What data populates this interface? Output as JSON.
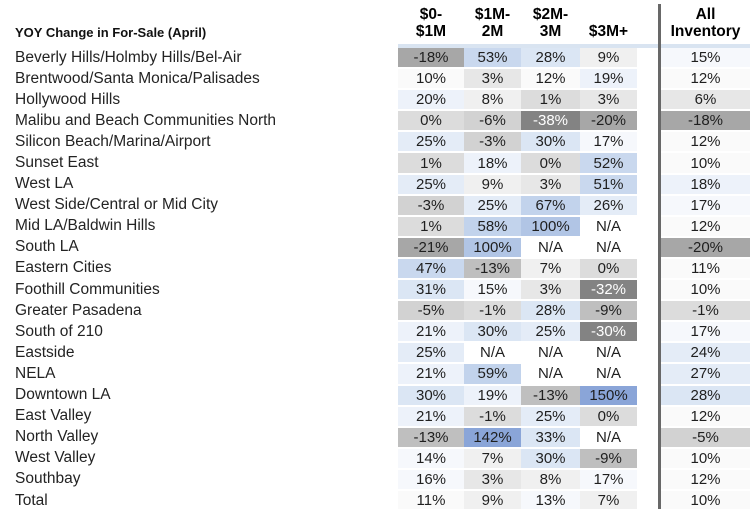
{
  "header": {
    "title": "YOY Change in For-Sale (April)",
    "columns": [
      [
        "$0-",
        "$1M"
      ],
      [
        "$1M-",
        "2M"
      ],
      [
        "$2M-",
        "3M"
      ],
      [
        "",
        "$3M+"
      ],
      [
        "All",
        "Inventory"
      ]
    ]
  },
  "na_label": "N/A",
  "heatmap": {
    "na_bg": "#ffffff",
    "default_text": "#1f1f1f",
    "divider": "#686868",
    "header_underline": "#d9e4f1"
  },
  "color_scale": [
    {
      "max": -25,
      "bg": "#838383",
      "fg": "#ffffff"
    },
    {
      "max": -15,
      "bg": "#a7a7a7"
    },
    {
      "max": -8,
      "bg": "#bfbfbf"
    },
    {
      "max": -2,
      "bg": "#d2d2d2"
    },
    {
      "max": 1,
      "bg": "#dcdcdc"
    },
    {
      "max": 6,
      "bg": "#e7e7e7"
    },
    {
      "max": 9,
      "bg": "#f0f0f0"
    },
    {
      "max": 12,
      "bg": "#fafafa"
    },
    {
      "max": 17,
      "bg": "#f6f8fc"
    },
    {
      "max": 22,
      "bg": "#edf2fa"
    },
    {
      "max": 27,
      "bg": "#e4ecf7"
    },
    {
      "max": 35,
      "bg": "#dbe6f4"
    },
    {
      "max": 55,
      "bg": "#c9d8ee"
    },
    {
      "max": 70,
      "bg": "#c2d3ec"
    },
    {
      "max": 120,
      "bg": "#b1c5e5"
    },
    {
      "max": 10000,
      "bg": "#8aa5d8"
    }
  ],
  "chart_data": {
    "type": "heatmap",
    "title": "YOY Change in For-Sale (April)",
    "columns": [
      "$0-$1M",
      "$1M-2M",
      "$2M-3M",
      "$3M+",
      "All Inventory"
    ],
    "unit": "percent",
    "color_encoding": "3-color scale: dark gray = most negative (white text below -25%), white near ~10%, blue = most positive; N/A = no data",
    "rows": [
      {
        "label": "Beverly Hills/Holmby Hills/Bel-Air",
        "values": [
          -18,
          53,
          28,
          9,
          15
        ]
      },
      {
        "label": "Brentwood/Santa Monica/Palisades",
        "values": [
          10,
          3,
          12,
          19,
          12
        ]
      },
      {
        "label": "Hollywood Hills",
        "values": [
          20,
          8,
          1,
          3,
          6
        ]
      },
      {
        "label": "Malibu and Beach Communities North",
        "values": [
          0,
          -6,
          -38,
          -20,
          -18
        ]
      },
      {
        "label": "Silicon Beach/Marina/Airport",
        "values": [
          25,
          -3,
          30,
          17,
          12
        ]
      },
      {
        "label": "Sunset East",
        "values": [
          1,
          18,
          0,
          52,
          10
        ]
      },
      {
        "label": "West LA",
        "values": [
          25,
          9,
          3,
          51,
          18
        ]
      },
      {
        "label": "West Side/Central or Mid City",
        "values": [
          -3,
          25,
          67,
          26,
          17
        ]
      },
      {
        "label": "Mid LA/Baldwin Hills",
        "values": [
          1,
          58,
          100,
          null,
          12
        ]
      },
      {
        "label": "South LA",
        "values": [
          -21,
          100,
          null,
          null,
          -20
        ]
      },
      {
        "label": "Eastern Cities",
        "values": [
          47,
          -13,
          7,
          0,
          11
        ]
      },
      {
        "label": "Foothill Communities",
        "values": [
          31,
          15,
          3,
          -32,
          10
        ]
      },
      {
        "label": "Greater Pasadena",
        "values": [
          -5,
          -1,
          28,
          -9,
          -1
        ]
      },
      {
        "label": "South of 210",
        "values": [
          21,
          30,
          25,
          -30,
          17
        ]
      },
      {
        "label": "Eastside",
        "values": [
          25,
          null,
          null,
          null,
          24
        ]
      },
      {
        "label": "NELA",
        "values": [
          21,
          59,
          null,
          null,
          27
        ]
      },
      {
        "label": "Downtown LA",
        "values": [
          30,
          19,
          -13,
          150,
          28
        ]
      },
      {
        "label": "East Valley",
        "values": [
          21,
          -1,
          25,
          0,
          12
        ]
      },
      {
        "label": "North Valley",
        "values": [
          -13,
          142,
          33,
          null,
          -5
        ]
      },
      {
        "label": "West Valley",
        "values": [
          14,
          7,
          30,
          -9,
          10
        ]
      },
      {
        "label": "Southbay",
        "values": [
          16,
          3,
          8,
          17,
          12
        ]
      },
      {
        "label": "Total",
        "values": [
          11,
          9,
          13,
          7,
          10
        ]
      }
    ]
  }
}
